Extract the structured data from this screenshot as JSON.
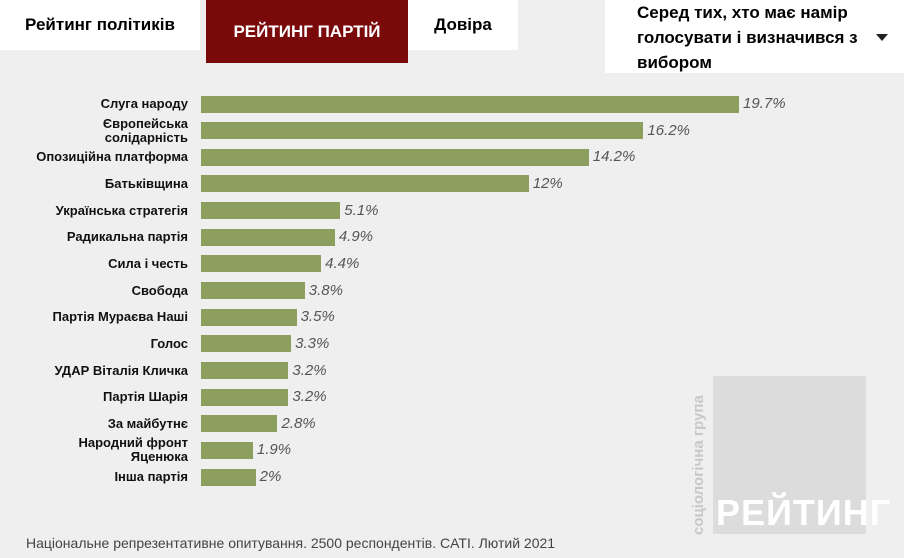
{
  "tabs": [
    "Рейтинг політиків",
    "РЕЙТИНГ ПАРТІЙ",
    "Довіра"
  ],
  "dropdown": "Серед тих, хто має намір голосувати і визначився з вибором",
  "watermark": {
    "brand": "РЕЙТИНГ",
    "subtitle": "соціологічна група"
  },
  "footnote": "Національне репрезентативне опитування. 2500 респондентів. CATI. Лютий 2021",
  "chart_data": {
    "type": "bar",
    "orientation": "horizontal",
    "color": "#8c9f5e",
    "categories": [
      "Слуга народу",
      "Європейська\nсолідарність",
      "Опозиційна платформа",
      "Батьківщина",
      "Українська стратегія",
      "Радикальна партія",
      "Сила і честь",
      "Свобода",
      "Партія Мураєва Наші",
      "Голос",
      "УДАР Віталія Кличка",
      "Партія Шарія",
      "За майбутнє",
      "Народний фронт\nЯценюка",
      "Інша партія"
    ],
    "values": [
      19.7,
      16.2,
      14.2,
      12,
      5.1,
      4.9,
      4.4,
      3.8,
      3.5,
      3.3,
      3.2,
      3.2,
      2.8,
      1.9,
      2
    ],
    "value_labels": [
      "19.7%",
      "16.2%",
      "14.2%",
      "12%",
      "5.1%",
      "4.9%",
      "4.4%",
      "3.8%",
      "3.5%",
      "3.3%",
      "3.2%",
      "3.2%",
      "2.8%",
      "1.9%",
      "2%"
    ]
  }
}
